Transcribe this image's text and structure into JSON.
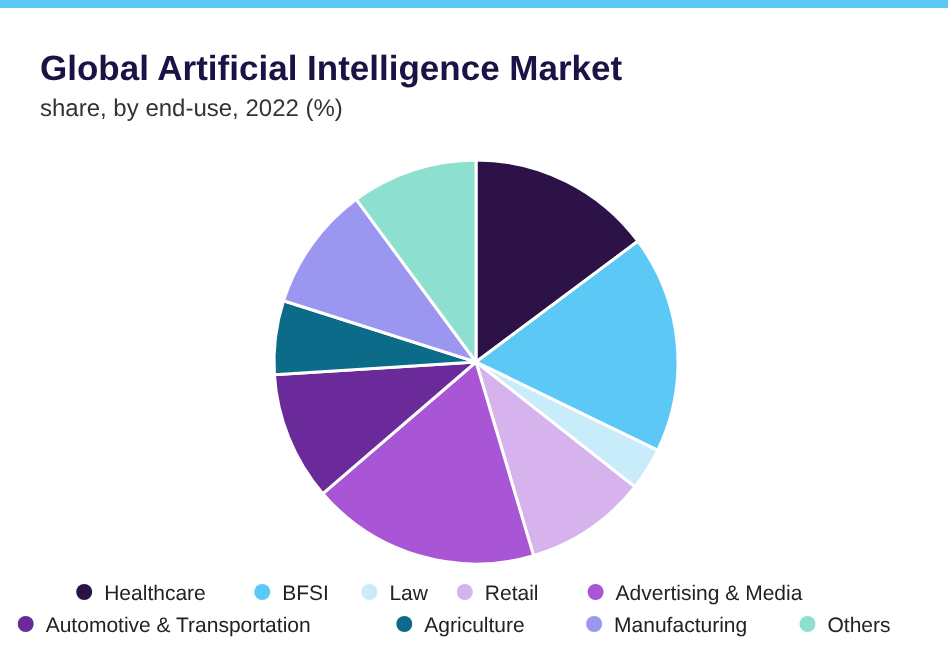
{
  "chart_data": {
    "type": "pie",
    "title": "Global Artificial Intelligence Market",
    "subtitle": "share, by end-use, 2022 (%)",
    "categories": [
      "Healthcare",
      "BFSI",
      "Law",
      "Retail",
      "Advertising & Media",
      "Automotive & Transportation",
      "Agriculture",
      "Manufacturing",
      "Others"
    ],
    "values": [
      14.8,
      17.4,
      3.4,
      9.8,
      18.3,
      10.3,
      5.9,
      10.0,
      10.1
    ],
    "colors": [
      "#2d1247",
      "#5bc8f5",
      "#c9ecfa",
      "#d7b3ee",
      "#a855d6",
      "#6a2a9a",
      "#0d6b8a",
      "#9b97f0",
      "#8de0cf"
    ],
    "legend": "bottom"
  }
}
